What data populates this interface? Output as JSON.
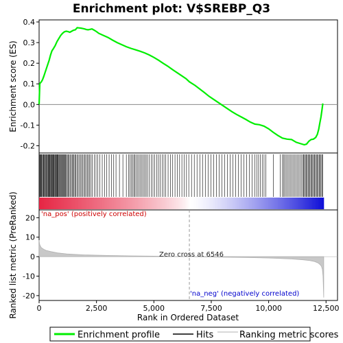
{
  "chart_data": {
    "type": "line",
    "title": "Enrichment plot: V$SREBP_Q3",
    "es_panel": {
      "ylabel": "Enrichment score (ES)",
      "ylim": [
        -0.235,
        0.41
      ],
      "yticks": [
        -0.2,
        -0.1,
        0.0,
        0.1,
        0.2,
        0.3,
        0.4
      ],
      "ytick_labels": [
        "-0.2",
        "-0.1",
        "0.0",
        "0.1",
        "0.2",
        "0.3",
        "0.4"
      ],
      "series": [
        {
          "name": "Enrichment profile",
          "color": "#00ee00",
          "x": [
            0,
            30,
            60,
            100,
            150,
            200,
            260,
            320,
            380,
            440,
            500,
            560,
            620,
            700,
            780,
            860,
            940,
            1020,
            1100,
            1180,
            1260,
            1340,
            1420,
            1500,
            1580,
            1660,
            1740,
            1820,
            1900,
            1980,
            2060,
            2140,
            2220,
            2300,
            2400,
            2500,
            2600,
            2800,
            3000,
            3200,
            3400,
            3600,
            3800,
            4000,
            4200,
            4400,
            4600,
            4800,
            5000,
            5200,
            5400,
            5600,
            5800,
            6000,
            6200,
            6400,
            6546,
            6800,
            7000,
            7200,
            7400,
            7600,
            7800,
            8000,
            8200,
            8400,
            8600,
            8800,
            9000,
            9200,
            9400,
            9600,
            9800,
            10000,
            10200,
            10400,
            10600,
            10800,
            11000,
            11200,
            11400,
            11550,
            11650,
            11750,
            11850,
            11950,
            12050,
            12120,
            12180,
            12230,
            12280,
            12320,
            12360
          ],
          "y": [
            0.0,
            0.1,
            0.105,
            0.11,
            0.12,
            0.135,
            0.155,
            0.175,
            0.195,
            0.215,
            0.24,
            0.26,
            0.27,
            0.285,
            0.305,
            0.32,
            0.335,
            0.345,
            0.352,
            0.355,
            0.353,
            0.35,
            0.355,
            0.36,
            0.362,
            0.372,
            0.371,
            0.37,
            0.368,
            0.366,
            0.363,
            0.362,
            0.364,
            0.366,
            0.36,
            0.353,
            0.345,
            0.335,
            0.325,
            0.312,
            0.3,
            0.29,
            0.28,
            0.272,
            0.265,
            0.258,
            0.25,
            0.24,
            0.228,
            0.215,
            0.2,
            0.186,
            0.17,
            0.155,
            0.14,
            0.125,
            0.11,
            0.092,
            0.075,
            0.058,
            0.04,
            0.025,
            0.01,
            -0.005,
            -0.02,
            -0.035,
            -0.048,
            -0.06,
            -0.072,
            -0.085,
            -0.095,
            -0.098,
            -0.105,
            -0.118,
            -0.135,
            -0.15,
            -0.163,
            -0.168,
            -0.17,
            -0.183,
            -0.19,
            -0.195,
            -0.192,
            -0.178,
            -0.17,
            -0.168,
            -0.16,
            -0.145,
            -0.12,
            -0.09,
            -0.06,
            -0.03,
            0.005
          ]
        }
      ],
      "zero_line": true
    },
    "hits": {
      "name": "Hits",
      "color": "#000000",
      "positions": [
        15,
        40,
        65,
        90,
        110,
        150,
        175,
        200,
        230,
        260,
        285,
        310,
        340,
        360,
        395,
        420,
        445,
        470,
        500,
        520,
        545,
        570,
        600,
        620,
        645,
        670,
        700,
        725,
        750,
        780,
        800,
        830,
        860,
        890,
        920,
        950,
        980,
        1010,
        1040,
        1070,
        1100,
        1130,
        1160,
        1190,
        1230,
        1270,
        1310,
        1350,
        1400,
        1440,
        1480,
        1520,
        1560,
        1600,
        1650,
        1700,
        1750,
        1800,
        1850,
        1900,
        1950,
        2000,
        2050,
        2100,
        2150,
        2200,
        2260,
        2320,
        2400,
        2480,
        2560,
        2650,
        2750,
        2850,
        2950,
        3050,
        3150,
        3250,
        3350,
        3500,
        3650,
        3800,
        3900,
        3960,
        4020,
        4080,
        4130,
        4180,
        4240,
        4300,
        4360,
        4420,
        4480,
        4540,
        4600,
        4660,
        4720,
        4800,
        4880,
        4960,
        5040,
        5120,
        5200,
        5280,
        5360,
        5440,
        5520,
        5620,
        5720,
        5820,
        5920,
        6020,
        6120,
        6220,
        6320,
        6420,
        6520,
        6640,
        6760,
        6880,
        7000,
        7120,
        7240,
        7360,
        7480,
        7600,
        7720,
        7840,
        7960,
        8080,
        8200,
        8320,
        8440,
        8560,
        8680,
        8800,
        8920,
        9040,
        9160,
        9280,
        9400,
        9480,
        9560,
        9640,
        9720,
        9800,
        9880,
        10200,
        10500,
        10600,
        10650,
        10700,
        10760,
        10820,
        10880,
        10940,
        11000,
        11060,
        11120,
        11180,
        11240,
        11300,
        11360,
        11420,
        11480,
        11520,
        11560,
        11600,
        11640,
        11680,
        11720,
        11760,
        11800,
        11840,
        11880,
        11920,
        11960,
        12000,
        12040,
        12080,
        12120,
        12160,
        12200,
        12240,
        12280,
        12320,
        12350
      ]
    },
    "ranked_metric": {
      "name": "Ranking metric scores",
      "color": "#b0b0b0",
      "ylabel": "Ranked list metric (PreRanked)",
      "ylim": [
        -22.5,
        24
      ],
      "yticks": [
        -20,
        -10,
        0,
        10,
        20
      ],
      "ytick_labels": [
        "-20",
        "-10",
        "0",
        "10",
        "20"
      ],
      "x": [
        0,
        20,
        50,
        100,
        200,
        300,
        500,
        800,
        1200,
        2000,
        3000,
        4000,
        5000,
        6000,
        6546,
        7000,
        8000,
        9000,
        10000,
        10500,
        11000,
        11500,
        11800,
        12000,
        12150,
        12250,
        12300,
        12340,
        12370,
        12400
      ],
      "values": [
        8.5,
        6.5,
        5.5,
        4.6,
        3.8,
        3.2,
        2.6,
        1.9,
        1.4,
        0.9,
        0.6,
        0.4,
        0.25,
        0.08,
        0.0,
        -0.1,
        -0.25,
        -0.45,
        -0.7,
        -0.9,
        -1.2,
        -1.6,
        -2.0,
        -2.5,
        -3.2,
        -4.2,
        -5.0,
        -6.5,
        -10.0,
        -21.0
      ]
    },
    "annotations": {
      "pos_label": "'na_pos' (positively correlated)",
      "neg_label": "'na_neg' (negatively correlated)",
      "zero_cross_label": "Zero cross at 6546",
      "zero_cross": 6546,
      "pos_color": "#cc0000",
      "neg_color": "#0000cc"
    },
    "xaxis": {
      "label": "Rank in Ordered Dataset",
      "xlim": [
        0,
        13000
      ],
      "ticks": [
        0,
        2500,
        5000,
        7500,
        10000,
        12500
      ],
      "tick_labels": [
        "0",
        "2,500",
        "5,000",
        "7,500",
        "10,000",
        "12,500"
      ],
      "n_genes": 12400
    },
    "legend": {
      "items": [
        {
          "label": "Enrichment profile",
          "color": "#00ee00",
          "kind": "line-thick"
        },
        {
          "label": "Hits",
          "color": "#000000",
          "kind": "line"
        },
        {
          "label": "Ranking metric scores",
          "color": "#b0b0b0",
          "kind": "line-thin"
        }
      ]
    }
  }
}
